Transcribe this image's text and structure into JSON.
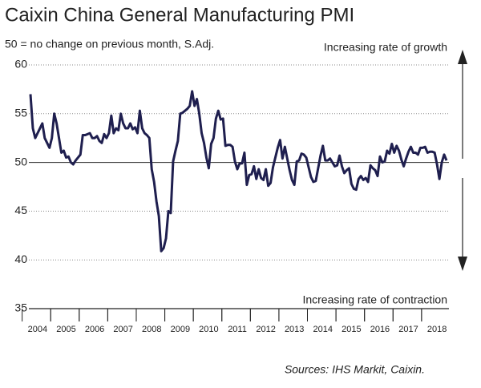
{
  "chart_data": {
    "type": "line",
    "title": "Caixin China General Manufacturing PMI",
    "subtitle": "50 = no change on previous month, S.Adj.",
    "annotations": [
      "Increasing rate of growth",
      "Increasing rate of contraction"
    ],
    "source": "Sources: IHS Markit, Caixin.",
    "categories": [
      null,
      null,
      null,
      "2004",
      null,
      null,
      null,
      null,
      null,
      null,
      null,
      null,
      null,
      null,
      null,
      "2005",
      null,
      null,
      null,
      null,
      null,
      null,
      null,
      null,
      null,
      null,
      null,
      "2006",
      null,
      null,
      null,
      null,
      null,
      null,
      null,
      null,
      null,
      null,
      null,
      "2007",
      null,
      null,
      null,
      null,
      null,
      null,
      null,
      null,
      null,
      null,
      null,
      "2008",
      null,
      null,
      null,
      null,
      null,
      null,
      null,
      null,
      null,
      null,
      null,
      "2009",
      null,
      null,
      null,
      null,
      null,
      null,
      null,
      null,
      null,
      null,
      null,
      "2010",
      null,
      null,
      null,
      null,
      null,
      null,
      null,
      null,
      null,
      null,
      null,
      "2011",
      null,
      null,
      null,
      null,
      null,
      null,
      null,
      null,
      null,
      null,
      null,
      "2012",
      null,
      null,
      null,
      null,
      null,
      null,
      null,
      null,
      null,
      null,
      null,
      "2013",
      null,
      null,
      null,
      null,
      null,
      null,
      null,
      null,
      null,
      null,
      null,
      "2014",
      null,
      null,
      null,
      null,
      null,
      null,
      null,
      null,
      null,
      null,
      null,
      "2015",
      null,
      null,
      null,
      null,
      null,
      null,
      null,
      null,
      null,
      null,
      null,
      "2016",
      null,
      null,
      null,
      null,
      null,
      null,
      null,
      null,
      null,
      null,
      null,
      "2017",
      null,
      null,
      null,
      null,
      null,
      null,
      null,
      null,
      null,
      null,
      null,
      "2018",
      null,
      null,
      null,
      null
    ],
    "series": [
      {
        "color": "#1f1f4f",
        "values": [
          57.0,
          53.5,
          52.5,
          53.0,
          53.5,
          54.0,
          52.5,
          52.0,
          51.5,
          52.5,
          55.0,
          54.0,
          52.5,
          51.0,
          51.2,
          50.5,
          50.6,
          50.0,
          49.8,
          50.2,
          50.5,
          50.8,
          52.8,
          52.8,
          52.9,
          53.0,
          52.5,
          52.5,
          52.7,
          52.2,
          52.0,
          52.9,
          52.5,
          53.0,
          54.8,
          53.0,
          53.5,
          53.3,
          55.0,
          54.0,
          53.5,
          53.5,
          54.0,
          53.4,
          53.6,
          53.0,
          55.3,
          53.5,
          53.0,
          52.8,
          52.5,
          49.3,
          48.0,
          46.0,
          44.5,
          40.9,
          41.2,
          42.2,
          45.0,
          44.8,
          50.1,
          51.2,
          52.2,
          55.0,
          55.1,
          55.3,
          55.5,
          55.8,
          57.3,
          55.8,
          56.5,
          55.0,
          53.0,
          52.0,
          50.5,
          49.4,
          51.9,
          52.5,
          54.5,
          55.3,
          54.4,
          54.5,
          51.7,
          51.8,
          51.8,
          51.6,
          50.1,
          49.3,
          49.9,
          49.9,
          51.0,
          47.7,
          48.7,
          48.8,
          49.6,
          48.3,
          49.3,
          48.4,
          48.2,
          49.3,
          47.6,
          47.9,
          49.5,
          50.5,
          51.5,
          52.3,
          50.4,
          51.6,
          50.4,
          49.2,
          48.2,
          47.7,
          50.1,
          50.2,
          50.9,
          50.8,
          50.5,
          49.5,
          48.5,
          48.0,
          48.1,
          49.4,
          50.7,
          51.7,
          50.2,
          50.2,
          50.4,
          50.0,
          49.6,
          49.7,
          50.7,
          49.6,
          48.9,
          49.2,
          49.4,
          47.8,
          47.3,
          47.2,
          48.3,
          48.6,
          48.2,
          48.4,
          48.0,
          49.7,
          49.4,
          49.2,
          48.6,
          50.6,
          50.0,
          50.1,
          51.2,
          50.9,
          51.9,
          51.0,
          51.7,
          51.2,
          50.3,
          49.6,
          50.4,
          51.1,
          51.6,
          51.0,
          51.0,
          50.8,
          51.5,
          51.5,
          51.6,
          51.0,
          51.1,
          51.1,
          51.0,
          49.8,
          48.3,
          50.0,
          50.8,
          50.2
        ]
      }
    ],
    "ylim": [
      35,
      60
    ],
    "yticks": [
      35,
      40,
      45,
      50,
      55,
      60
    ],
    "grid": true,
    "baseline": 50
  }
}
